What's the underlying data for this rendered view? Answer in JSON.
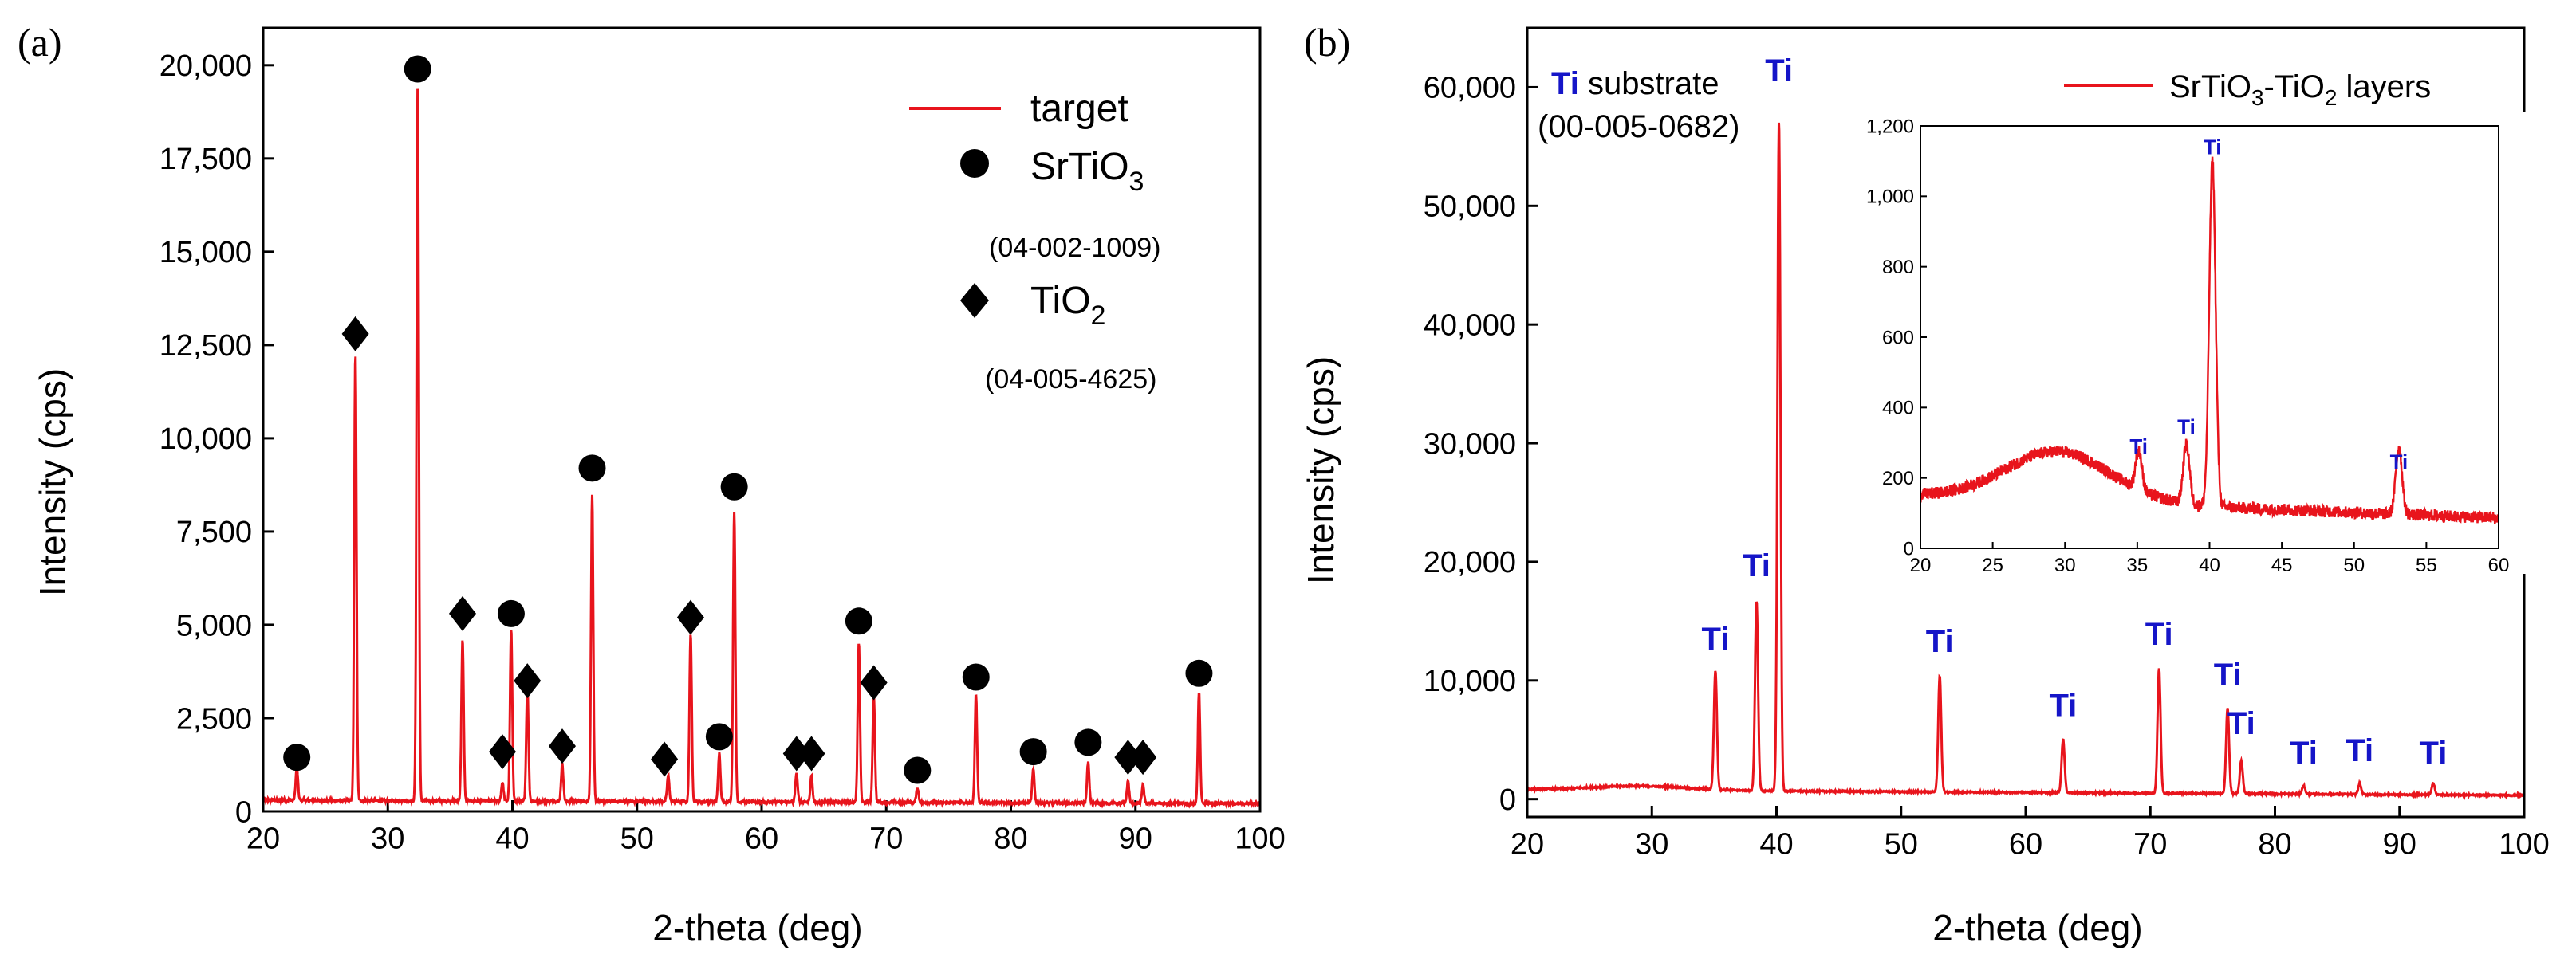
{
  "chart_data": [
    {
      "panel_label": "(a)",
      "type": "line",
      "xlabel": "2-theta (deg)",
      "ylabel": "Intensity (cps)",
      "xlim": [
        20,
        100
      ],
      "ylim": [
        0,
        21000
      ],
      "x_ticks": [
        "20",
        "30",
        "40",
        "50",
        "60",
        "70",
        "80",
        "90",
        "100"
      ],
      "y_ticks": [
        "0",
        "2,500",
        "5,000",
        "7,500",
        "10,000",
        "12,500",
        "15,000",
        "17,500",
        "20,000"
      ],
      "y_tick_values": [
        0,
        2500,
        5000,
        7500,
        10000,
        12500,
        15000,
        17500,
        20000
      ],
      "x_tick_values": [
        20,
        30,
        40,
        50,
        60,
        70,
        80,
        90,
        100
      ],
      "baseline": 300,
      "series": [
        {
          "name": "target",
          "color": "#e8141c",
          "peaks": [
            [
              22.7,
              900
            ],
            [
              27.4,
              12000
            ],
            [
              32.4,
              19200
            ],
            [
              36.0,
              4300
            ],
            [
              39.2,
              500
            ],
            [
              39.9,
              4600
            ],
            [
              41.2,
              3100
            ],
            [
              44.0,
              1000
            ],
            [
              46.4,
              8200
            ],
            [
              52.5,
              700
            ],
            [
              54.3,
              4500
            ],
            [
              56.6,
              1300
            ],
            [
              57.8,
              7800
            ],
            [
              62.8,
              800
            ],
            [
              64.0,
              700
            ],
            [
              67.8,
              4300
            ],
            [
              69.0,
              2900
            ],
            [
              72.5,
              400
            ],
            [
              77.2,
              2900
            ],
            [
              81.8,
              900
            ],
            [
              86.2,
              1100
            ],
            [
              89.4,
              600
            ],
            [
              90.6,
              500
            ],
            [
              95.1,
              3000
            ]
          ]
        }
      ],
      "markers": [
        {
          "kind": "circle",
          "label": "SrTiO3",
          "positions": [
            [
              22.7,
              1450
            ],
            [
              32.4,
              19900
            ],
            [
              39.9,
              5300
            ],
            [
              46.4,
              9200
            ],
            [
              56.6,
              2000
            ],
            [
              57.8,
              8700
            ],
            [
              67.8,
              5100
            ],
            [
              72.5,
              1100
            ],
            [
              77.2,
              3600
            ],
            [
              81.8,
              1600
            ],
            [
              86.2,
              1850
            ],
            [
              95.1,
              3700
            ]
          ]
        },
        {
          "kind": "diamond",
          "label": "TiO2",
          "positions": [
            [
              27.4,
              12800
            ],
            [
              36.0,
              5300
            ],
            [
              39.2,
              1600
            ],
            [
              41.2,
              3500
            ],
            [
              44.0,
              1750
            ],
            [
              52.2,
              1400
            ],
            [
              54.3,
              5200
            ],
            [
              62.8,
              1550
            ],
            [
              64.0,
              1550
            ],
            [
              69.0,
              3450
            ],
            [
              89.4,
              1450
            ],
            [
              90.6,
              1450
            ]
          ]
        }
      ],
      "legend": {
        "line_label": "target",
        "srtio3_main": "SrTiO",
        "srtio3_sub": "3",
        "srtio3_code": "(04-002-1009)",
        "tio2_main": "TiO",
        "tio2_sub": "2",
        "tio2_code": "(04-005-4625)"
      }
    },
    {
      "panel_label": "(b)",
      "type": "line",
      "xlabel": "2-theta (deg)",
      "ylabel": "Intensity (cps)",
      "xlim": [
        20,
        100
      ],
      "ylim": [
        -1500,
        65000
      ],
      "x_ticks": [
        "20",
        "30",
        "40",
        "50",
        "60",
        "70",
        "80",
        "90",
        "100"
      ],
      "y_ticks": [
        "0",
        "10,000",
        "20,000",
        "30,000",
        "40,000",
        "50,000",
        "60,000"
      ],
      "y_tick_values": [
        0,
        10000,
        20000,
        30000,
        40000,
        50000,
        60000
      ],
      "x_tick_values": [
        20,
        30,
        40,
        50,
        60,
        70,
        80,
        90,
        100
      ],
      "baseline": 800,
      "series": [
        {
          "name": "SrTiO3-TiO2 layers",
          "color": "#e8141c",
          "peaks": [
            [
              35.1,
              10000
            ],
            [
              38.4,
              16000
            ],
            [
              40.2,
              56500
            ],
            [
              53.1,
              9800
            ],
            [
              63.0,
              4500
            ],
            [
              70.7,
              10500
            ],
            [
              76.2,
              7200
            ],
            [
              77.3,
              2800
            ],
            [
              82.3,
              700
            ],
            [
              86.8,
              900
            ],
            [
              92.7,
              1000
            ]
          ]
        }
      ],
      "ti_labels": [
        [
          35.1,
          12600
        ],
        [
          38.4,
          18800
        ],
        [
          40.2,
          60500
        ],
        [
          53.1,
          12400
        ],
        [
          63.0,
          7000
        ],
        [
          70.7,
          13000
        ],
        [
          76.2,
          9600
        ],
        [
          77.3,
          5500
        ],
        [
          82.3,
          3000
        ],
        [
          86.8,
          3200
        ],
        [
          92.7,
          3000
        ]
      ],
      "ti_text": "Ti",
      "substrate_label": {
        "ti": "Ti",
        "rest": " substrate",
        "code": "(00-005-0682)"
      },
      "legend": {
        "main": "SrTiO",
        "sub1": "3",
        "mid": "-TiO",
        "sub2": "2",
        "rest": " layers"
      },
      "inset": {
        "xlim": [
          20,
          60
        ],
        "ylim": [
          0,
          1200
        ],
        "x_ticks": [
          "20",
          "25",
          "30",
          "35",
          "40",
          "45",
          "50",
          "55",
          "60"
        ],
        "x_tick_values": [
          20,
          25,
          30,
          35,
          40,
          45,
          50,
          55,
          60
        ],
        "y_ticks": [
          "0",
          "200",
          "400",
          "600",
          "800",
          "1,000",
          "1,200"
        ],
        "y_tick_values": [
          0,
          200,
          400,
          600,
          800,
          1000,
          1200
        ],
        "peaks": [
          [
            35.1,
            110
          ],
          [
            38.4,
            170
          ],
          [
            40.2,
            980
          ],
          [
            53.1,
            190
          ]
        ],
        "ti_labels": [
          [
            35.1,
            270
          ],
          [
            38.4,
            325
          ],
          [
            40.2,
            1120
          ],
          [
            53.1,
            225
          ]
        ]
      }
    }
  ]
}
